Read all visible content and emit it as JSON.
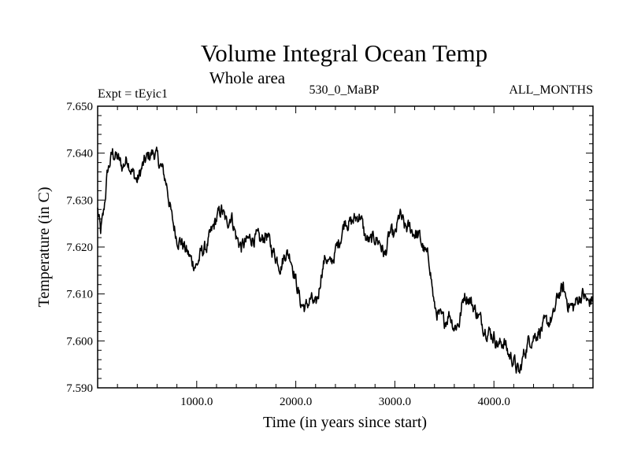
{
  "chart_data": {
    "type": "line",
    "title": "Volume Integral Ocean Temp",
    "subtitle": "Whole area",
    "left_label": "Expt = tEyic1",
    "center_label": "530_0_MaBP",
    "right_label": "ALL_MONTHS",
    "xlabel": "Time (in years since start)",
    "ylabel": "Temperature (in C)",
    "xlim": [
      0,
      5000
    ],
    "ylim": [
      7.59,
      7.65
    ],
    "x_ticks": [
      1000,
      2000,
      3000,
      4000
    ],
    "x_tick_labels": [
      "1000.0",
      "2000.0",
      "3000.0",
      "4000.0"
    ],
    "y_ticks": [
      7.59,
      7.6,
      7.61,
      7.62,
      7.63,
      7.64,
      7.65
    ],
    "y_tick_labels": [
      "7.590",
      "7.600",
      "7.610",
      "7.620",
      "7.630",
      "7.640",
      "7.650"
    ],
    "grid": false,
    "series": [
      {
        "name": "Volume Integral Ocean Temp",
        "color": "#000000",
        "x": [
          0,
          30,
          60,
          100,
          150,
          200,
          250,
          300,
          350,
          400,
          450,
          500,
          550,
          580,
          620,
          660,
          700,
          750,
          800,
          850,
          900,
          950,
          1000,
          1050,
          1100,
          1150,
          1200,
          1250,
          1300,
          1350,
          1400,
          1450,
          1500,
          1550,
          1600,
          1650,
          1700,
          1750,
          1800,
          1850,
          1900,
          1950,
          2000,
          2050,
          2100,
          2150,
          2200,
          2230,
          2260,
          2300,
          2350,
          2400,
          2450,
          2500,
          2550,
          2600,
          2650,
          2700,
          2750,
          2800,
          2850,
          2900,
          2950,
          3000,
          3050,
          3100,
          3150,
          3200,
          3250,
          3300,
          3350,
          3400,
          3450,
          3500,
          3550,
          3600,
          3650,
          3700,
          3750,
          3800,
          3850,
          3900,
          3950,
          4000,
          4050,
          4100,
          4150,
          4200,
          4230,
          4260,
          4300,
          4350,
          4400,
          4450,
          4500,
          4550,
          4600,
          4650,
          4700,
          4750,
          4800,
          4850,
          4900,
          4950,
          5000
        ],
        "values": [
          7.628,
          7.623,
          7.627,
          7.636,
          7.64,
          7.639,
          7.637,
          7.639,
          7.636,
          7.634,
          7.637,
          7.639,
          7.64,
          7.64,
          7.638,
          7.636,
          7.633,
          7.626,
          7.622,
          7.621,
          7.619,
          7.617,
          7.616,
          7.619,
          7.62,
          7.623,
          7.626,
          7.628,
          7.625,
          7.627,
          7.622,
          7.62,
          7.621,
          7.622,
          7.622,
          7.621,
          7.623,
          7.62,
          7.618,
          7.616,
          7.619,
          7.618,
          7.613,
          7.608,
          7.607,
          7.609,
          7.607,
          7.61,
          7.615,
          7.618,
          7.616,
          7.619,
          7.622,
          7.626,
          7.625,
          7.626,
          7.627,
          7.622,
          7.621,
          7.622,
          7.621,
          7.618,
          7.623,
          7.622,
          7.627,
          7.624,
          7.624,
          7.623,
          7.622,
          7.619,
          7.617,
          7.607,
          7.605,
          7.604,
          7.606,
          7.603,
          7.604,
          7.61,
          7.609,
          7.607,
          7.605,
          7.603,
          7.602,
          7.601,
          7.599,
          7.6,
          7.597,
          7.596,
          7.594,
          7.593,
          7.597,
          7.6,
          7.601,
          7.602,
          7.603,
          7.604,
          7.605,
          7.61,
          7.611,
          7.608,
          7.607,
          7.609,
          7.61,
          7.608,
          7.609
        ]
      }
    ]
  }
}
